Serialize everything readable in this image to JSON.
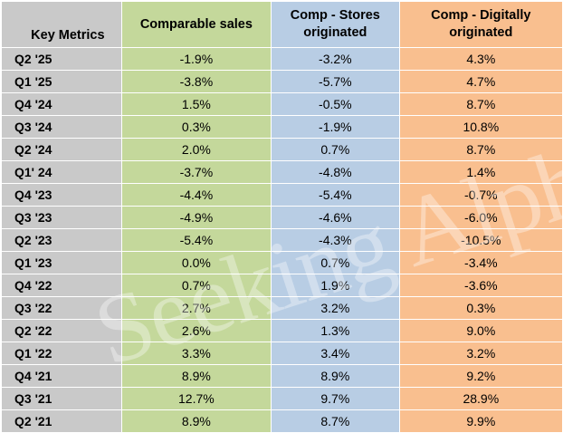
{
  "table": {
    "headers": [
      "Key Metrics",
      "Comparable sales",
      "Comp - Stores originated",
      "Comp - Digitally originated"
    ],
    "rows": [
      [
        "Q2 '25",
        "-1.9%",
        "-3.2%",
        "4.3%"
      ],
      [
        "Q1 '25",
        "-3.8%",
        "-5.7%",
        "4.7%"
      ],
      [
        "Q4 '24",
        "1.5%",
        "-0.5%",
        "8.7%"
      ],
      [
        "Q3 '24",
        "0.3%",
        "-1.9%",
        "10.8%"
      ],
      [
        "Q2 '24",
        "2.0%",
        "0.7%",
        "8.7%"
      ],
      [
        "Q1' 24",
        "-3.7%",
        "-4.8%",
        "1.4%"
      ],
      [
        "Q4 '23",
        "-4.4%",
        "-5.4%",
        "-0.7%"
      ],
      [
        "Q3 '23",
        "-4.9%",
        "-4.6%",
        "-6.0%"
      ],
      [
        "Q2 '23",
        "-5.4%",
        "-4.3%",
        "-10.5%"
      ],
      [
        "Q1 '23",
        "0.0%",
        "0.7%",
        "-3.4%"
      ],
      [
        "Q4 '22",
        "0.7%",
        "1.9%",
        "-3.6%"
      ],
      [
        "Q3 '22",
        "2.7%",
        "3.2%",
        "0.3%"
      ],
      [
        "Q2 '22",
        "2.6%",
        "1.3%",
        "9.0%"
      ],
      [
        "Q1 '22",
        "3.3%",
        "3.4%",
        "3.2%"
      ],
      [
        "Q4 '21",
        "8.9%",
        "8.9%",
        "9.2%"
      ],
      [
        "Q3 '21",
        "12.7%",
        "9.7%",
        "28.9%"
      ],
      [
        "Q2 '21",
        "8.9%",
        "8.7%",
        "9.9%"
      ]
    ]
  },
  "watermark": "Seeking Alpha",
  "colors": {
    "key_column": "#c9c9c9",
    "comparable_sales": "#c4d89b",
    "stores_originated": "#b8cde4",
    "digitally_originated": "#f9bf8f"
  }
}
